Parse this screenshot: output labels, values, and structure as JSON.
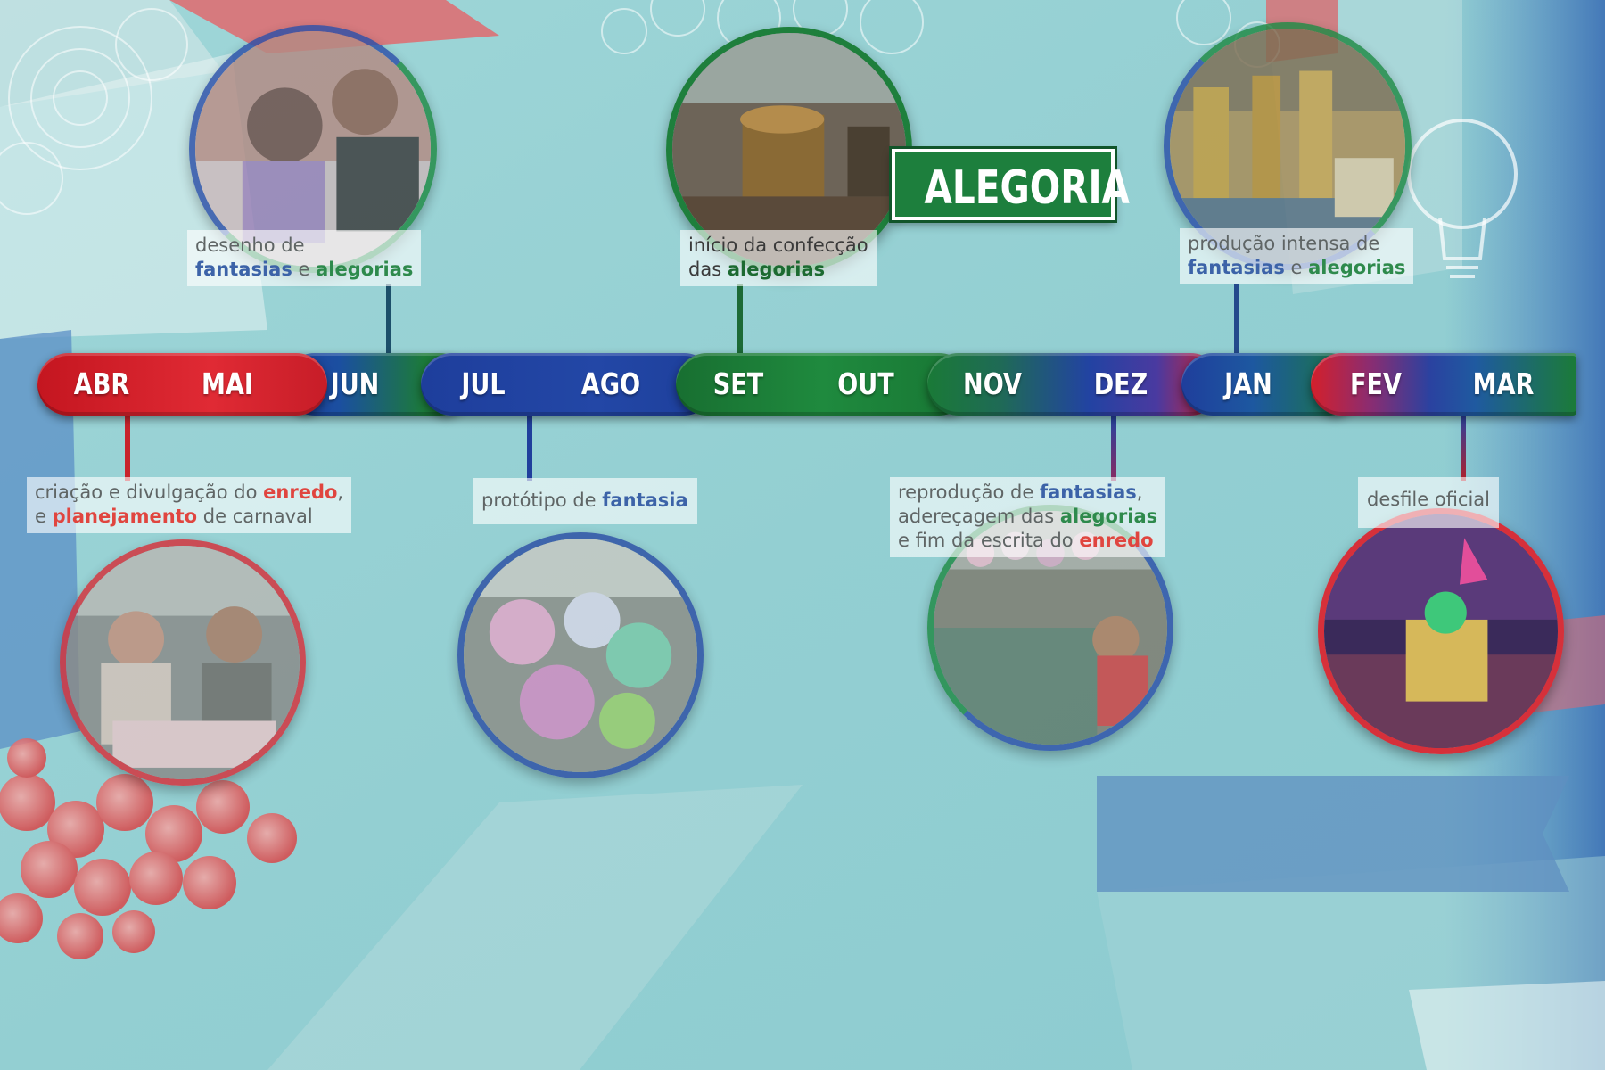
{
  "tag": "ALEGORIA",
  "months": [
    "ABR",
    "MAI",
    "JUN",
    "JUL",
    "AGO",
    "SET",
    "OUT",
    "NOV",
    "DEZ",
    "JAN",
    "FEV",
    "MAR"
  ],
  "events": {
    "e1": {
      "l1": [
        "desenho de"
      ],
      "l2": [
        "fantasias",
        " e ",
        "alegorias"
      ]
    },
    "e2": {
      "l1": [
        "início da confecção"
      ],
      "l2": [
        "das ",
        "alegorias"
      ]
    },
    "e3": {
      "l1": [
        "produção intensa de"
      ],
      "l2": [
        "fantasias",
        " e ",
        "alegorias"
      ]
    },
    "e4": {
      "l1": [
        "criação e divulgação do ",
        "enredo",
        ","
      ],
      "l2": [
        "e ",
        "planejamento",
        " de carnaval"
      ]
    },
    "e5": {
      "l1": [
        "protótipo de ",
        "fantasia"
      ]
    },
    "e6": {
      "l1": [
        "reprodução de ",
        "fantasias",
        ","
      ],
      "l2": [
        "adereçagem das ",
        "alegorias"
      ],
      "l3": [
        "e fim da escrita do ",
        "enredo"
      ]
    },
    "e7": {
      "l1": [
        "desfile oficial"
      ]
    }
  },
  "colors": {
    "red": "#d8232c",
    "blue": "#203f9c",
    "green": "#1c7c37",
    "background": "#8fcdd0"
  }
}
